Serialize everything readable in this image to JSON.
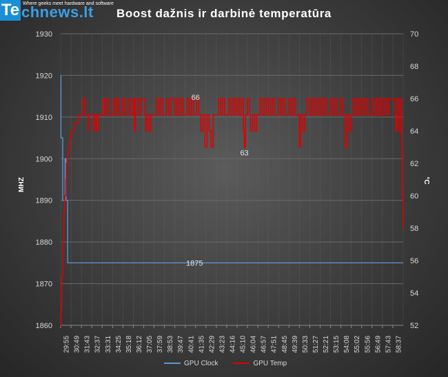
{
  "logo": {
    "badge": "Te",
    "text": "chnews.lt",
    "tagline": "Where geeks meet hardware and software"
  },
  "colors": {
    "clock": "#5b9bd5",
    "temp": "#e00000",
    "grid": "#6a6a6a",
    "text": "#d9d9d9"
  },
  "chart_data": {
    "type": "line",
    "title": "Boost dažnis ir darbinė temperatūra",
    "ylabel": "MHZ",
    "y2label": "°C",
    "ylim": [
      1860,
      1930
    ],
    "y2lim": [
      52,
      70
    ],
    "yticks": [
      1860,
      1870,
      1880,
      1890,
      1900,
      1910,
      1920,
      1930
    ],
    "y2ticks": [
      52,
      54,
      56,
      58,
      60,
      62,
      64,
      66,
      68,
      70
    ],
    "grid": true,
    "legend": "bottom",
    "categories": [
      "29:55",
      "30:49",
      "31:43",
      "32:37",
      "33:31",
      "34:25",
      "35:18",
      "36:12",
      "37:05",
      "37:59",
      "38:53",
      "39:47",
      "40:41",
      "41:35",
      "42:29",
      "43:23",
      "44:16",
      "45:10",
      "46:04",
      "46:57",
      "47:51",
      "48:45",
      "49:39",
      "50:33",
      "51:27",
      "52:21",
      "53:15",
      "54:08",
      "55:02",
      "55:56",
      "56:49",
      "57:43",
      "58:37"
    ],
    "series": [
      {
        "name": "GPU Clock",
        "axis": "left",
        "points": [
          [
            0,
            1920
          ],
          [
            0.03,
            1905
          ],
          [
            0.2,
            1905
          ],
          [
            0.2,
            1890
          ],
          [
            0.42,
            1890
          ],
          [
            0.42,
            1900
          ],
          [
            0.52,
            1900
          ],
          [
            0.52,
            1890
          ],
          [
            0.68,
            1890
          ],
          [
            0.68,
            1875
          ],
          [
            33,
            1875
          ]
        ]
      },
      {
        "name": "GPU Temp",
        "axis": "right",
        "points": [
          [
            0,
            52
          ],
          [
            0.05,
            53
          ],
          [
            0.1,
            55
          ],
          [
            0.2,
            57
          ],
          [
            0.3,
            59
          ],
          [
            0.4,
            60
          ],
          [
            0.5,
            61
          ],
          [
            0.55,
            62
          ],
          [
            0.65,
            62.5
          ],
          [
            0.75,
            63
          ],
          [
            0.9,
            63.5
          ],
          [
            1,
            64
          ],
          [
            1.2,
            64
          ],
          [
            1.3,
            64.5
          ],
          [
            1.6,
            64.5
          ],
          [
            1.7,
            65
          ],
          [
            2.0,
            65
          ],
          [
            2.1,
            66
          ],
          [
            2.3,
            66
          ],
          [
            2.35,
            65
          ],
          [
            2.6,
            65
          ],
          [
            2.65,
            64
          ],
          [
            2.7,
            65
          ],
          [
            3.1,
            65
          ],
          [
            3.2,
            64
          ],
          [
            3.3,
            65
          ],
          [
            3.5,
            64
          ],
          [
            3.6,
            65
          ],
          [
            4,
            65
          ],
          [
            4.1,
            66
          ],
          [
            4.2,
            65
          ],
          [
            4.4,
            66
          ],
          [
            4.6,
            65
          ],
          [
            5,
            65
          ],
          [
            5.1,
            66
          ],
          [
            5.3,
            65
          ],
          [
            5.5,
            66
          ],
          [
            5.7,
            65
          ],
          [
            6,
            66
          ],
          [
            6.2,
            65
          ],
          [
            6.5,
            66
          ],
          [
            6.7,
            65
          ],
          [
            7,
            66
          ],
          [
            7.1,
            64
          ],
          [
            7.2,
            66
          ],
          [
            7.5,
            65
          ],
          [
            7.7,
            66
          ],
          [
            8,
            66
          ],
          [
            8.1,
            65
          ],
          [
            8.2,
            64
          ],
          [
            8.3,
            65
          ],
          [
            8.5,
            64
          ],
          [
            8.7,
            65
          ],
          [
            9,
            65
          ],
          [
            9.2,
            66
          ],
          [
            9.4,
            65
          ],
          [
            9.6,
            66
          ],
          [
            9.8,
            65
          ],
          [
            10,
            65
          ],
          [
            10.2,
            66
          ],
          [
            10.4,
            65
          ],
          [
            10.6,
            66
          ],
          [
            11,
            65
          ],
          [
            11.2,
            66
          ],
          [
            11.4,
            65
          ],
          [
            11.6,
            66
          ],
          [
            11.8,
            65
          ],
          [
            12,
            65
          ],
          [
            12.2,
            66
          ],
          [
            12.4,
            65
          ],
          [
            12.6,
            66
          ],
          [
            12.8,
            65
          ],
          [
            13,
            65
          ],
          [
            13.1,
            66
          ],
          [
            13.3,
            65
          ],
          [
            13.5,
            64
          ],
          [
            13.7,
            65
          ],
          [
            13.9,
            63
          ],
          [
            14.1,
            65
          ],
          [
            14.3,
            64
          ],
          [
            14.5,
            63
          ],
          [
            14.7,
            65
          ],
          [
            15,
            65
          ],
          [
            15.2,
            66
          ],
          [
            15.4,
            65
          ],
          [
            15.6,
            66
          ],
          [
            15.8,
            65
          ],
          [
            16,
            65
          ],
          [
            16.2,
            66
          ],
          [
            16.4,
            65
          ],
          [
            16.6,
            66
          ],
          [
            16.8,
            65
          ],
          [
            17,
            66
          ],
          [
            17.2,
            65
          ],
          [
            17.4,
            66
          ],
          [
            17.6,
            64
          ],
          [
            17.7,
            63
          ],
          [
            17.8,
            65
          ],
          [
            18,
            66
          ],
          [
            18.2,
            65
          ],
          [
            18.3,
            64
          ],
          [
            18.5,
            65
          ],
          [
            18.7,
            64
          ],
          [
            18.9,
            65
          ],
          [
            19,
            65
          ],
          [
            19.2,
            66
          ],
          [
            19.4,
            65
          ],
          [
            19.6,
            66
          ],
          [
            19.8,
            65
          ],
          [
            20,
            66
          ],
          [
            20.2,
            65
          ],
          [
            20.4,
            66
          ],
          [
            20.6,
            65
          ],
          [
            21,
            66
          ],
          [
            21.2,
            65
          ],
          [
            21.4,
            66
          ],
          [
            21.6,
            65
          ],
          [
            22,
            66
          ],
          [
            22.2,
            65
          ],
          [
            22.4,
            66
          ],
          [
            22.6,
            65
          ],
          [
            23,
            63
          ],
          [
            23.1,
            65
          ],
          [
            23.3,
            64
          ],
          [
            23.5,
            65
          ],
          [
            23.7,
            66
          ],
          [
            24,
            65
          ],
          [
            24.2,
            66
          ],
          [
            24.4,
            65
          ],
          [
            24.6,
            66
          ],
          [
            24.8,
            65
          ],
          [
            25,
            66
          ],
          [
            25.2,
            65
          ],
          [
            25.4,
            66
          ],
          [
            25.6,
            65
          ],
          [
            26,
            66
          ],
          [
            26.2,
            65
          ],
          [
            26.4,
            66
          ],
          [
            26.6,
            65
          ],
          [
            27,
            66
          ],
          [
            27.2,
            65
          ],
          [
            27.4,
            63
          ],
          [
            27.6,
            65
          ],
          [
            27.8,
            64
          ],
          [
            28,
            65
          ],
          [
            28.2,
            66
          ],
          [
            28.4,
            65
          ],
          [
            28.6,
            66
          ],
          [
            28.8,
            65
          ],
          [
            29,
            66
          ],
          [
            29.2,
            65
          ],
          [
            29.4,
            66
          ],
          [
            29.6,
            65
          ],
          [
            30,
            66
          ],
          [
            30.2,
            65
          ],
          [
            30.4,
            66
          ],
          [
            30.6,
            65
          ],
          [
            30.8,
            66
          ],
          [
            31,
            65
          ],
          [
            31.2,
            66
          ],
          [
            31.4,
            65
          ],
          [
            31.6,
            66
          ],
          [
            32,
            66
          ],
          [
            32.2,
            65
          ],
          [
            32.3,
            64
          ],
          [
            32.4,
            66
          ],
          [
            32.6,
            64
          ],
          [
            32.8,
            66
          ],
          [
            32.85,
            63
          ],
          [
            32.9,
            60
          ],
          [
            33,
            58
          ]
        ]
      }
    ],
    "annotations": [
      {
        "series": "GPU Temp",
        "x": 13.0,
        "y": 66,
        "text": "66"
      },
      {
        "series": "GPU Temp",
        "x": 17.7,
        "y": 63,
        "text": "63"
      },
      {
        "series": "GPU Clock",
        "x": 12.9,
        "y": 1875,
        "text": "1875"
      }
    ]
  }
}
